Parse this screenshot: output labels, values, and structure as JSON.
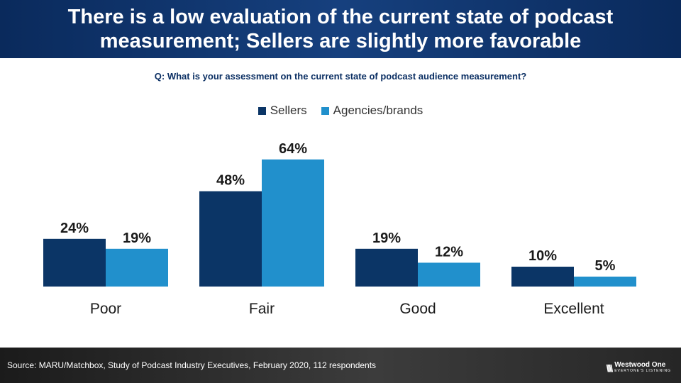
{
  "header": {
    "title": "There is a low evaluation of the current state of podcast measurement; Sellers are slightly more favorable"
  },
  "question": "Q: What is your assessment on the current state of podcast audience measurement?",
  "colors": {
    "sellers": "#0b3566",
    "agencies": "#2190cc"
  },
  "chart_data": {
    "type": "bar",
    "categories": [
      "Poor",
      "Fair",
      "Good",
      "Excellent"
    ],
    "series": [
      {
        "name": "Sellers",
        "values": [
          24,
          48,
          19,
          10
        ],
        "labels": [
          "24%",
          "48%",
          "19%",
          "10%"
        ]
      },
      {
        "name": "Agencies/brands",
        "values": [
          19,
          64,
          12,
          5
        ],
        "labels": [
          "19%",
          "64%",
          "12%",
          "5%"
        ]
      }
    ]
  },
  "footer": {
    "source": "Source: MARU/Matchbox, Study of Podcast Industry Executives, February 2020, 112 respondents",
    "logo_name": "Westwood One",
    "logo_tagline": "EVERYONE'S LISTENING"
  }
}
